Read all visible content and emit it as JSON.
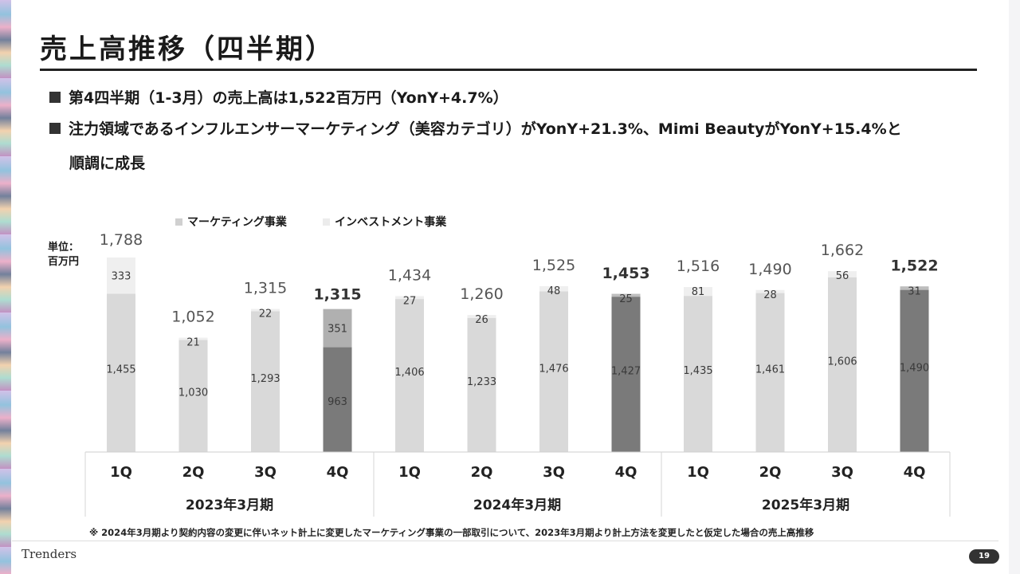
{
  "title": "売上高推移（四半期）",
  "bullets": [
    "第4四半期（1-3月）の売上高は1,522百万円（YonY+4.7%）",
    "注力領域であるインフルエンサーマーケティング（美容カテゴリ）がYonY+21.3%、Mimi BeautyがYonY+15.4%と",
    "順調に成長"
  ],
  "unit_label": {
    "line1": "単位：",
    "line2": "百万円"
  },
  "footnote": "※ 2024年3月期より契約内容の変更に伴いネット計上に変更したマーケティング事業の一部取引について、2023年3月期より計上方法を変更したと仮定した場合の売上高推移",
  "logo": "Trenders",
  "page_number": "19",
  "colors": {
    "marketing": "#d9d9d9",
    "investment": "#efefef",
    "q4_marketing": "#7a7a7a",
    "q4_investment_2023": "#b0b0b0"
  },
  "chart_data": {
    "type": "bar",
    "stacked": true,
    "legend": [
      "マーケティング事業",
      "インベストメント事業"
    ],
    "categories": [
      "1Q",
      "2Q",
      "3Q",
      "4Q",
      "1Q",
      "2Q",
      "3Q",
      "4Q",
      "1Q",
      "2Q",
      "3Q",
      "4Q"
    ],
    "groups": [
      "2023年3月期",
      "2024年3月期",
      "2025年3月期"
    ],
    "series": [
      {
        "name": "マーケティング事業",
        "values": [
          1455,
          1030,
          1293,
          963,
          1406,
          1233,
          1476,
          1427,
          1435,
          1461,
          1606,
          1490
        ]
      },
      {
        "name": "インベストメント事業",
        "values": [
          333,
          21,
          22,
          351,
          27,
          26,
          48,
          25,
          81,
          28,
          56,
          31
        ]
      }
    ],
    "totals": [
      1788,
      1052,
      1315,
      1315,
      1434,
      1260,
      1525,
      1453,
      1516,
      1490,
      1662,
      1522
    ],
    "total_labels": [
      "1,788",
      "1,052",
      "1,315",
      "1,315",
      "1,434",
      "1,260",
      "1,525",
      "1,453",
      "1,516",
      "1,490",
      "1,662",
      "1,522"
    ],
    "marketing_labels": [
      "1,455",
      "1,030",
      "1,293",
      "963",
      "1,406",
      "1,233",
      "1,476",
      "1,427",
      "1,435",
      "1,461",
      "1,606",
      "1,490"
    ],
    "investment_labels": [
      "333",
      "21",
      "22",
      "351",
      "27",
      "26",
      "48",
      "25",
      "81",
      "28",
      "56",
      "31"
    ],
    "highlight_q4": true
  }
}
